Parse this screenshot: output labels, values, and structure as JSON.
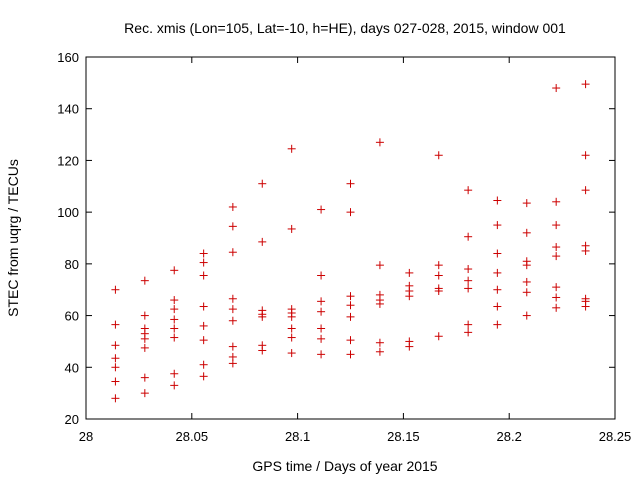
{
  "chart_data": {
    "type": "scatter",
    "title": "Rec. xmis (Lon=105, Lat=-10, h=HE), days 027-028, 2015, window 001",
    "xlabel": "GPS time / Days of year 2015",
    "ylabel": "STEC from uqrg / TECUs",
    "xlim": [
      28,
      28.25
    ],
    "ylim": [
      20,
      160
    ],
    "x_ticks": [
      "28",
      "28.05",
      "28.1",
      "28.15",
      "28.2",
      "28.25"
    ],
    "y_ticks": [
      "20",
      "40",
      "60",
      "80",
      "100",
      "120",
      "140",
      "160"
    ],
    "grid": false,
    "marker": "+",
    "color": "#cc0000",
    "points": [
      [
        28.0139,
        70
      ],
      [
        28.0139,
        56.5
      ],
      [
        28.0139,
        48.5
      ],
      [
        28.0139,
        43.5
      ],
      [
        28.0139,
        40
      ],
      [
        28.0139,
        34.5
      ],
      [
        28.0139,
        28
      ],
      [
        28.0278,
        73.5
      ],
      [
        28.0278,
        60
      ],
      [
        28.0278,
        55
      ],
      [
        28.0278,
        53
      ],
      [
        28.0278,
        51
      ],
      [
        28.0278,
        47.5
      ],
      [
        28.0278,
        36
      ],
      [
        28.0278,
        30
      ],
      [
        28.0417,
        77.5
      ],
      [
        28.0417,
        66
      ],
      [
        28.0417,
        62.5
      ],
      [
        28.0417,
        58.5
      ],
      [
        28.0417,
        55
      ],
      [
        28.0417,
        51.5
      ],
      [
        28.0417,
        37.5
      ],
      [
        28.0417,
        33
      ],
      [
        28.0556,
        84
      ],
      [
        28.0556,
        80.5
      ],
      [
        28.0556,
        75.5
      ],
      [
        28.0556,
        63.5
      ],
      [
        28.0556,
        56
      ],
      [
        28.0556,
        50.5
      ],
      [
        28.0556,
        41
      ],
      [
        28.0556,
        36.5
      ],
      [
        28.0694,
        102
      ],
      [
        28.0694,
        94.5
      ],
      [
        28.0694,
        84.5
      ],
      [
        28.0694,
        66.5
      ],
      [
        28.0694,
        62.5
      ],
      [
        28.0694,
        58
      ],
      [
        28.0694,
        48
      ],
      [
        28.0694,
        44
      ],
      [
        28.0694,
        41.5
      ],
      [
        28.0833,
        111
      ],
      [
        28.0833,
        88.5
      ],
      [
        28.0833,
        62
      ],
      [
        28.0833,
        60.5
      ],
      [
        28.0833,
        59.5
      ],
      [
        28.0833,
        48.5
      ],
      [
        28.0833,
        46.5
      ],
      [
        28.0972,
        124.5
      ],
      [
        28.0972,
        93.5
      ],
      [
        28.0972,
        62.5
      ],
      [
        28.0972,
        61
      ],
      [
        28.0972,
        59.5
      ],
      [
        28.0972,
        55
      ],
      [
        28.0972,
        51.5
      ],
      [
        28.0972,
        45.5
      ],
      [
        28.1111,
        101
      ],
      [
        28.1111,
        75.5
      ],
      [
        28.1111,
        65.5
      ],
      [
        28.1111,
        61.5
      ],
      [
        28.1111,
        55
      ],
      [
        28.1111,
        51
      ],
      [
        28.1111,
        45
      ],
      [
        28.125,
        111
      ],
      [
        28.125,
        100
      ],
      [
        28.125,
        67.5
      ],
      [
        28.125,
        64
      ],
      [
        28.125,
        59.5
      ],
      [
        28.125,
        50.5
      ],
      [
        28.125,
        45
      ],
      [
        28.1389,
        127
      ],
      [
        28.1389,
        79.5
      ],
      [
        28.1389,
        68
      ],
      [
        28.1389,
        66
      ],
      [
        28.1389,
        64.5
      ],
      [
        28.1389,
        49.5
      ],
      [
        28.1389,
        46
      ],
      [
        28.1528,
        76.5
      ],
      [
        28.1528,
        71.5
      ],
      [
        28.1528,
        69.5
      ],
      [
        28.1528,
        67.5
      ],
      [
        28.1528,
        50
      ],
      [
        28.1528,
        48
      ],
      [
        28.1667,
        122
      ],
      [
        28.1667,
        79.5
      ],
      [
        28.1667,
        75.5
      ],
      [
        28.1667,
        70.5
      ],
      [
        28.1667,
        69.5
      ],
      [
        28.1667,
        52
      ],
      [
        28.1806,
        108.5
      ],
      [
        28.1806,
        90.5
      ],
      [
        28.1806,
        78
      ],
      [
        28.1806,
        73.5
      ],
      [
        28.1806,
        70.5
      ],
      [
        28.1806,
        56.5
      ],
      [
        28.1806,
        53.5
      ],
      [
        28.1944,
        104.5
      ],
      [
        28.1944,
        95
      ],
      [
        28.1944,
        84
      ],
      [
        28.1944,
        76.5
      ],
      [
        28.1944,
        70
      ],
      [
        28.1944,
        63.5
      ],
      [
        28.1944,
        56.5
      ],
      [
        28.2083,
        103.5
      ],
      [
        28.2083,
        92
      ],
      [
        28.2083,
        81
      ],
      [
        28.2083,
        79.5
      ],
      [
        28.2083,
        73
      ],
      [
        28.2083,
        69
      ],
      [
        28.2083,
        60
      ],
      [
        28.2222,
        148
      ],
      [
        28.2222,
        104
      ],
      [
        28.2222,
        95
      ],
      [
        28.2222,
        86.5
      ],
      [
        28.2222,
        83
      ],
      [
        28.2222,
        71
      ],
      [
        28.2222,
        67
      ],
      [
        28.2222,
        63
      ],
      [
        28.2361,
        149.5
      ],
      [
        28.2361,
        122
      ],
      [
        28.2361,
        108.5
      ],
      [
        28.2361,
        87
      ],
      [
        28.2361,
        85
      ],
      [
        28.2361,
        66.5
      ],
      [
        28.2361,
        65.5
      ],
      [
        28.2361,
        63.5
      ]
    ]
  }
}
